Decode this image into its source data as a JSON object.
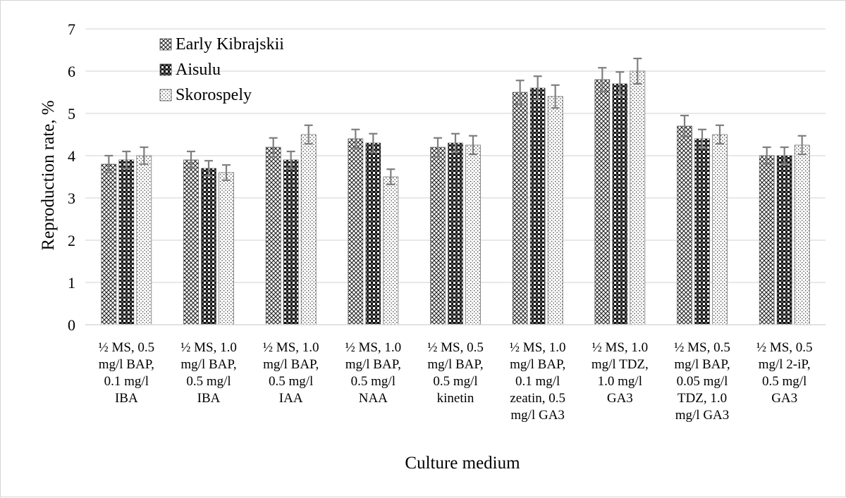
{
  "chart_data": {
    "type": "bar",
    "xlabel": "Culture medium",
    "ylabel": "Reproduction rate, %",
    "ylim": [
      0,
      7
    ],
    "yticks": [
      "0",
      "1",
      "2",
      "3",
      "4",
      "5",
      "6",
      "7"
    ],
    "grid": true,
    "legend_position": "top-left",
    "categories": [
      [
        "½ MS, 0.5",
        "mg/l BAP,",
        "0.1 mg/l",
        "IBA"
      ],
      [
        "½ MS, 1.0",
        "mg/l BAP,",
        "0.5 mg/l",
        "IBA"
      ],
      [
        "½ MS, 1.0",
        "mg/l BAP,",
        "0.5 mg/l",
        "IAA"
      ],
      [
        "½ MS, 1.0",
        "mg/l BAP,",
        "0.5 mg/l",
        "NAA"
      ],
      [
        "½ MS, 0.5",
        "mg/l BAP,",
        "0.5 mg/l",
        "kinetin"
      ],
      [
        "½ MS, 1.0",
        "mg/l BAP,",
        "0.1 mg/l",
        "zeatin, 0.5",
        "mg/l GA3"
      ],
      [
        "½ MS, 1.0",
        "mg/l TDZ,",
        "1.0 mg/l",
        "GA3"
      ],
      [
        "½ MS, 0.5",
        "mg/l BAP,",
        "0.05 mg/l",
        "TDZ, 1.0",
        "mg/l GA3"
      ],
      [
        "½ MS, 0.5",
        "mg/l 2-iP,",
        "0.5 mg/l",
        "GA3"
      ]
    ],
    "series": [
      {
        "name": "Early Kibrajskii",
        "pattern": "crosshatch",
        "values": [
          3.8,
          3.9,
          4.2,
          4.4,
          4.2,
          5.5,
          5.8,
          4.7,
          4.0
        ],
        "errors": [
          0.2,
          0.2,
          0.22,
          0.22,
          0.22,
          0.28,
          0.28,
          0.25,
          0.2
        ]
      },
      {
        "name": "Aisulu",
        "pattern": "dark-checker",
        "values": [
          3.9,
          3.7,
          3.9,
          4.3,
          4.3,
          5.6,
          5.7,
          4.4,
          4.0
        ],
        "errors": [
          0.2,
          0.18,
          0.2,
          0.22,
          0.22,
          0.28,
          0.28,
          0.22,
          0.2
        ]
      },
      {
        "name": "Skorospely",
        "pattern": "dots",
        "values": [
          4.0,
          3.6,
          4.5,
          3.5,
          4.25,
          5.4,
          6.0,
          4.5,
          4.25
        ],
        "errors": [
          0.2,
          0.18,
          0.22,
          0.18,
          0.22,
          0.27,
          0.3,
          0.22,
          0.22
        ]
      }
    ]
  }
}
